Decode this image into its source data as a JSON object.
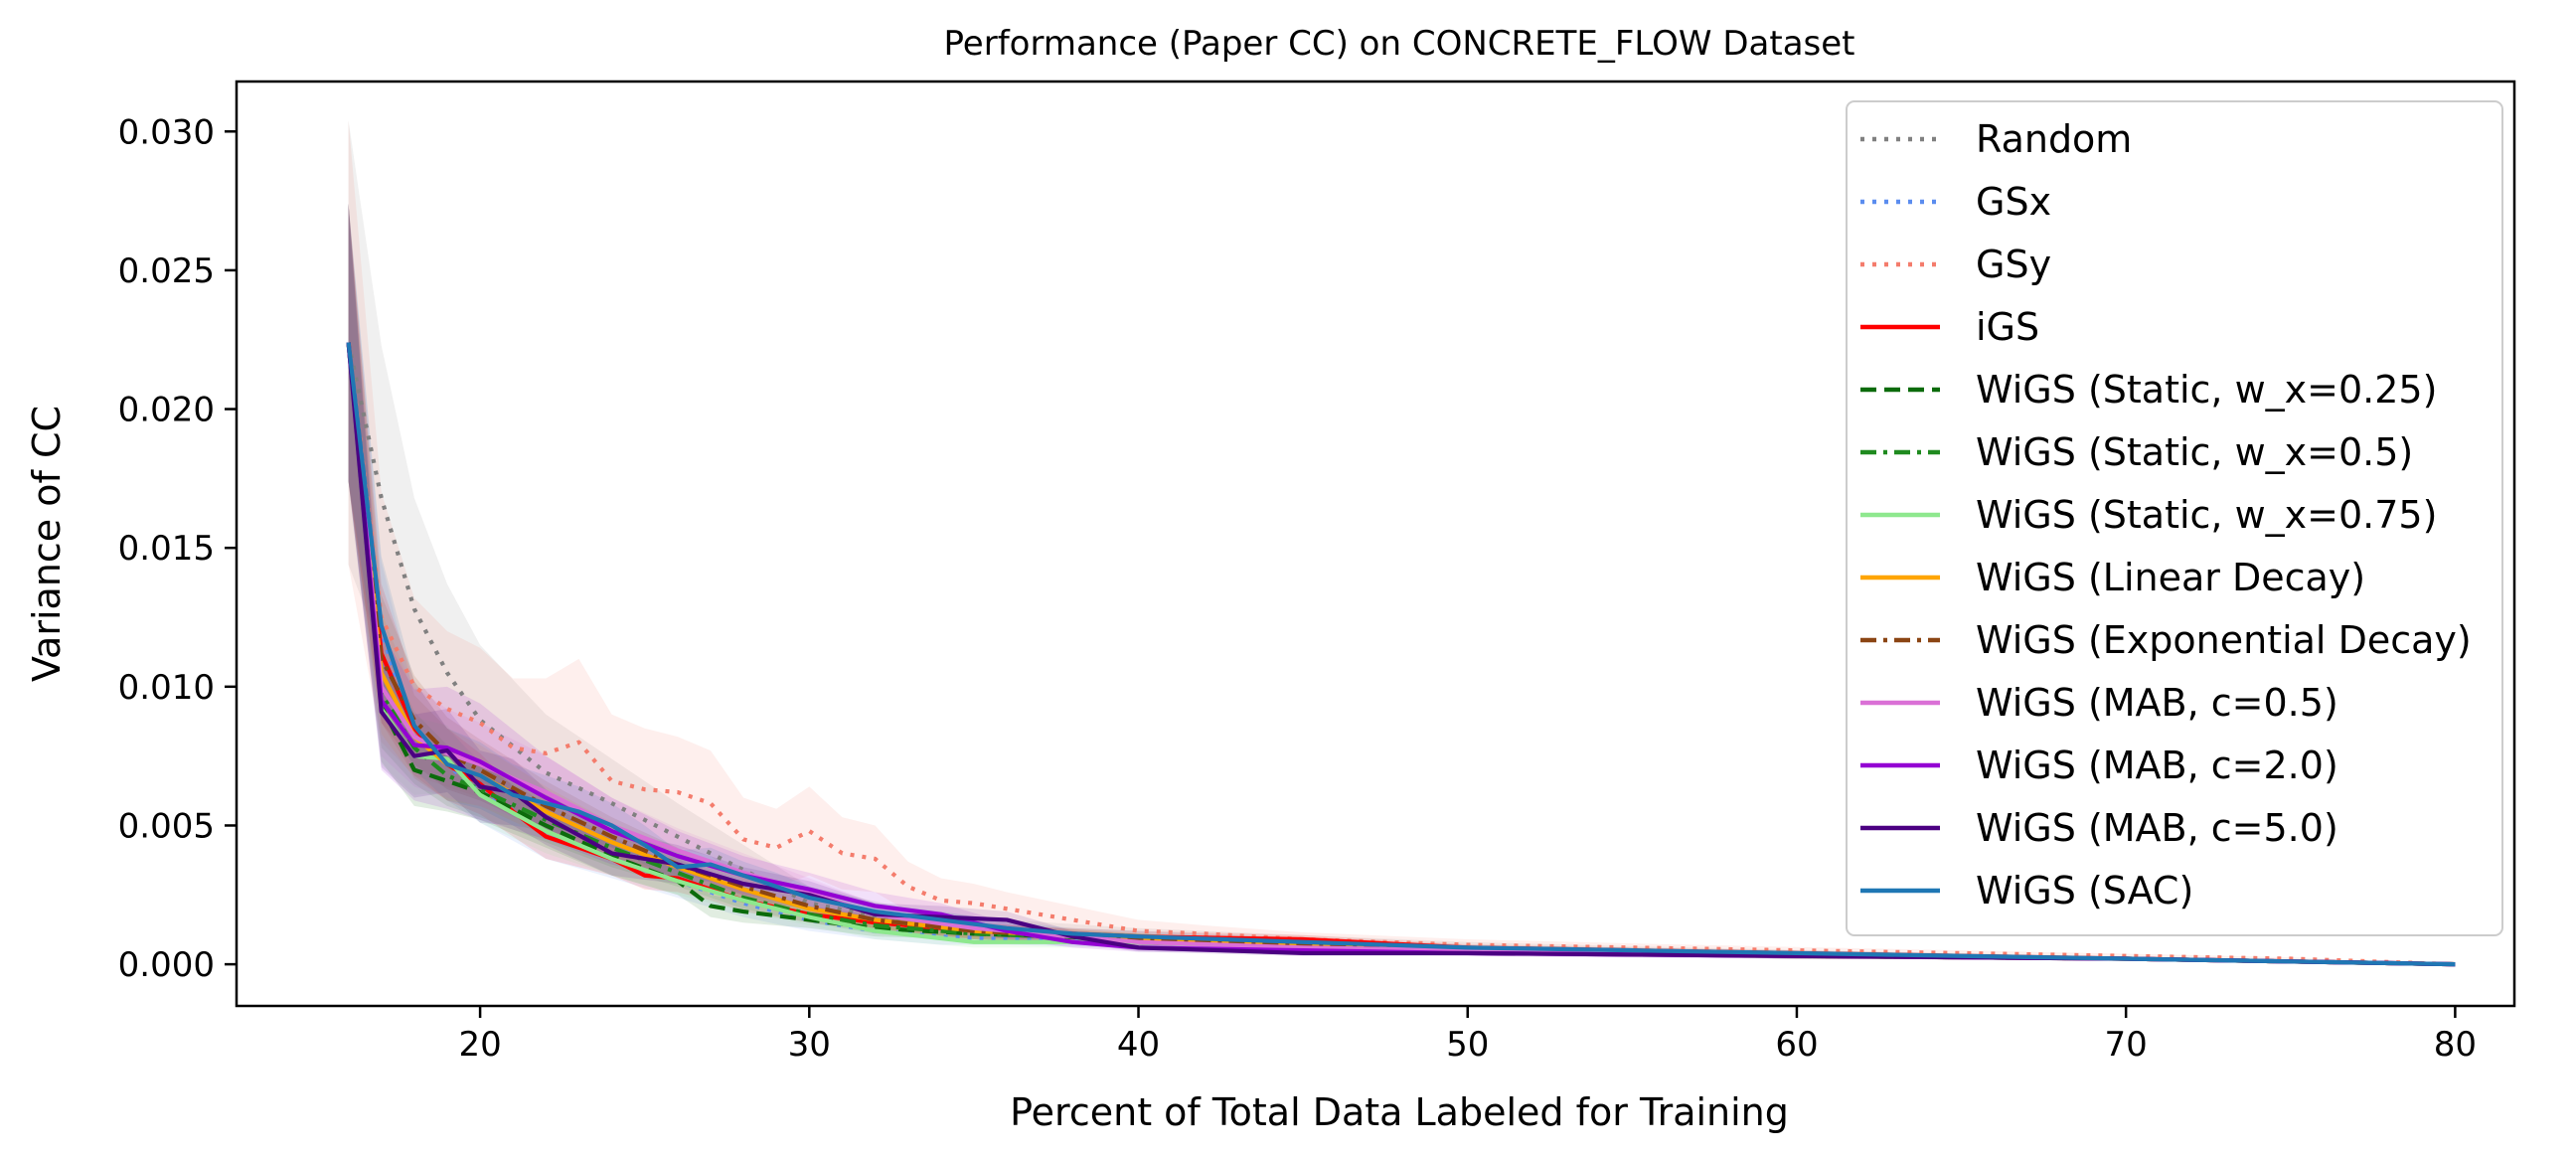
{
  "chart_data": {
    "type": "line",
    "title": "Performance (Paper CC) on CONCRETE_FLOW Dataset",
    "xlabel": "Percent of Total Data Labeled for Training",
    "ylabel": "Variance of CC",
    "xlim": [
      12.6,
      81.8
    ],
    "ylim": [
      -0.0015,
      0.0318
    ],
    "xticks": [
      20,
      30,
      40,
      50,
      60,
      70,
      80
    ],
    "yticks": [
      0.0,
      0.005,
      0.01,
      0.015,
      0.02,
      0.025,
      0.03
    ],
    "ytick_labels": [
      "0.000",
      "0.005",
      "0.010",
      "0.015",
      "0.020",
      "0.025",
      "0.030"
    ],
    "grid": false,
    "legend_position": "top-right",
    "series": [
      {
        "name": "Random",
        "color": "#808080",
        "style": "dotted",
        "x": [
          16,
          17,
          18,
          19,
          20,
          22,
          24,
          26,
          28,
          30,
          33,
          36,
          40,
          45,
          50,
          55,
          60,
          65,
          70,
          75,
          80
        ],
        "y": [
          0.0224,
          0.0168,
          0.0128,
          0.0105,
          0.0088,
          0.0069,
          0.0058,
          0.0046,
          0.0034,
          0.0022,
          0.0015,
          0.0012,
          0.001,
          0.0008,
          0.0006,
          0.0005,
          0.0004,
          0.0003,
          0.0002,
          0.0001,
          0.0
        ],
        "band": [
          0.008,
          0.0055,
          0.004,
          0.0032,
          0.0027,
          0.0021,
          0.0016,
          0.0012,
          0.0009,
          0.0006,
          0.0005,
          0.0004,
          0.0003,
          0.00025,
          0.0002,
          0.00015,
          0.00012,
          0.0001,
          8e-05,
          5e-05,
          0.0
        ]
      },
      {
        "name": "GSx",
        "color": "#5b8def",
        "style": "dotted",
        "x": [
          16,
          17,
          18,
          20,
          22,
          24,
          26,
          28,
          30,
          32,
          34,
          36,
          40,
          45,
          50,
          55,
          60,
          70,
          80
        ],
        "y": [
          0.0224,
          0.012,
          0.0082,
          0.0062,
          0.0047,
          0.0038,
          0.003,
          0.0022,
          0.0016,
          0.0012,
          0.001,
          0.0009,
          0.0008,
          0.0006,
          0.0005,
          0.0004,
          0.0003,
          0.0002,
          0.0
        ],
        "band": [
          0.005,
          0.0025,
          0.0015,
          0.0011,
          0.0009,
          0.0007,
          0.0006,
          0.0005,
          0.0004,
          0.0003,
          0.0003,
          0.0002,
          0.0002,
          0.00015,
          0.00012,
          0.0001,
          0.0001,
          5e-05,
          0.0
        ]
      },
      {
        "name": "GSy",
        "color": "#f47c6c",
        "style": "dotted",
        "x": [
          16,
          17,
          18,
          19,
          20,
          21,
          22,
          23,
          24,
          25,
          26,
          27,
          28,
          29,
          30,
          31,
          32,
          33,
          34,
          35,
          36,
          38,
          40,
          42,
          45,
          50,
          55,
          60,
          65,
          70,
          75,
          80
        ],
        "y": [
          0.0224,
          0.0125,
          0.01,
          0.0092,
          0.0087,
          0.0078,
          0.0076,
          0.008,
          0.0066,
          0.0063,
          0.0062,
          0.0058,
          0.0045,
          0.0042,
          0.0048,
          0.004,
          0.0038,
          0.0028,
          0.0023,
          0.0022,
          0.002,
          0.0016,
          0.0012,
          0.0011,
          0.0009,
          0.0007,
          0.0006,
          0.0005,
          0.0004,
          0.0003,
          0.0002,
          0.0
        ],
        "band": [
          0.008,
          0.0045,
          0.0032,
          0.0028,
          0.0027,
          0.0025,
          0.0027,
          0.003,
          0.0024,
          0.0022,
          0.002,
          0.0019,
          0.0015,
          0.0014,
          0.0016,
          0.0013,
          0.0012,
          0.0009,
          0.0008,
          0.0007,
          0.0006,
          0.0005,
          0.0004,
          0.0003,
          0.00025,
          0.0002,
          0.00015,
          0.00012,
          0.0001,
          8e-05,
          5e-05,
          0.0
        ]
      },
      {
        "name": "iGS",
        "color": "#ff0000",
        "style": "solid",
        "x": [
          16,
          17,
          18,
          19,
          20,
          21,
          22,
          23,
          24,
          25,
          26,
          27,
          28,
          30,
          32,
          35,
          38,
          40,
          45,
          50,
          55,
          60,
          65,
          70,
          75,
          80
        ],
        "y": [
          0.0224,
          0.0112,
          0.0085,
          0.0072,
          0.0065,
          0.0055,
          0.0046,
          0.0042,
          0.0038,
          0.0032,
          0.0031,
          0.0027,
          0.0023,
          0.0018,
          0.0015,
          0.0012,
          0.0011,
          0.001,
          0.0009,
          0.0006,
          0.0005,
          0.0004,
          0.0003,
          0.0002,
          0.0001,
          0.0
        ],
        "band": [
          0.005,
          0.0025,
          0.0017,
          0.0013,
          0.0011,
          0.0009,
          0.0008,
          0.0007,
          0.0006,
          0.0005,
          0.0005,
          0.0004,
          0.0004,
          0.0003,
          0.0003,
          0.00025,
          0.0002,
          0.0002,
          0.00015,
          0.00012,
          0.0001,
          0.0001,
          8e-05,
          5e-05,
          3e-05,
          0.0
        ]
      },
      {
        "name": "WiGS (Static, w_x=0.25)",
        "color": "#0b6b0b",
        "style": "dashed",
        "x": [
          16,
          17,
          18,
          19,
          20,
          22,
          24,
          26,
          27,
          28,
          30,
          32,
          35,
          40,
          45,
          50,
          60,
          70,
          80
        ],
        "y": [
          0.0224,
          0.0093,
          0.007,
          0.0066,
          0.0062,
          0.005,
          0.0039,
          0.003,
          0.0021,
          0.0019,
          0.0016,
          0.0013,
          0.0011,
          0.0009,
          0.0007,
          0.0005,
          0.0003,
          0.0002,
          0.0
        ],
        "band": [
          0.005,
          0.002,
          0.0013,
          0.0011,
          0.001,
          0.0008,
          0.0007,
          0.0005,
          0.0004,
          0.0004,
          0.0003,
          0.0003,
          0.0002,
          0.0002,
          0.00015,
          0.0001,
          0.0001,
          5e-05,
          0.0
        ]
      },
      {
        "name": "WiGS (Static, w_x=0.5)",
        "color": "#1f8a1f",
        "style": "dashdot",
        "x": [
          16,
          17,
          18,
          19,
          20,
          22,
          24,
          26,
          28,
          30,
          32,
          35,
          40,
          45,
          50,
          60,
          70,
          80
        ],
        "y": [
          0.0224,
          0.0098,
          0.0078,
          0.0068,
          0.0063,
          0.0052,
          0.0042,
          0.0033,
          0.0024,
          0.0018,
          0.0014,
          0.0011,
          0.0009,
          0.0007,
          0.0005,
          0.0003,
          0.0002,
          0.0
        ],
        "band": [
          0.005,
          0.002,
          0.0013,
          0.0011,
          0.001,
          0.0008,
          0.0007,
          0.0005,
          0.0004,
          0.0003,
          0.0003,
          0.0002,
          0.0002,
          0.00015,
          0.0001,
          0.0001,
          5e-05,
          0.0
        ]
      },
      {
        "name": "WiGS (Static, w_x=0.75)",
        "color": "#8ee88e",
        "style": "solid",
        "x": [
          16,
          17,
          18,
          19,
          20,
          22,
          24,
          26,
          28,
          30,
          32,
          35,
          40,
          45,
          50,
          60,
          70,
          80
        ],
        "y": [
          0.0224,
          0.0092,
          0.0075,
          0.0074,
          0.0061,
          0.0048,
          0.0038,
          0.003,
          0.0023,
          0.0017,
          0.0012,
          0.0008,
          0.0008,
          0.0006,
          0.0005,
          0.0003,
          0.0002,
          0.0
        ],
        "band": [
          0.005,
          0.002,
          0.0014,
          0.0012,
          0.001,
          0.0008,
          0.0006,
          0.0005,
          0.0004,
          0.0003,
          0.0003,
          0.0002,
          0.0002,
          0.00015,
          0.0001,
          0.0001,
          5e-05,
          0.0
        ]
      },
      {
        "name": "WiGS (Linear Decay)",
        "color": "#ffa500",
        "style": "solid",
        "x": [
          16,
          17,
          18,
          19,
          20,
          22,
          24,
          26,
          28,
          30,
          32,
          35,
          40,
          45,
          50,
          60,
          70,
          80
        ],
        "y": [
          0.0224,
          0.0105,
          0.0082,
          0.0072,
          0.0068,
          0.0055,
          0.0044,
          0.0035,
          0.0027,
          0.002,
          0.0016,
          0.0012,
          0.0009,
          0.0007,
          0.0005,
          0.0003,
          0.0002,
          0.0
        ],
        "band": [
          0.005,
          0.0022,
          0.0015,
          0.0013,
          0.0011,
          0.0009,
          0.0007,
          0.0006,
          0.0005,
          0.0004,
          0.0003,
          0.0003,
          0.0002,
          0.00015,
          0.0001,
          0.0001,
          5e-05,
          0.0
        ]
      },
      {
        "name": "WiGS (Exponential Decay)",
        "color": "#8b4513",
        "style": "dashdot",
        "x": [
          16,
          17,
          18,
          19,
          20,
          22,
          24,
          26,
          28,
          30,
          32,
          35,
          40,
          45,
          50,
          60,
          70,
          80
        ],
        "y": [
          0.0224,
          0.011,
          0.0088,
          0.0076,
          0.007,
          0.0057,
          0.0046,
          0.0036,
          0.0028,
          0.0021,
          0.0016,
          0.0012,
          0.0009,
          0.0007,
          0.0005,
          0.0003,
          0.0002,
          0.0
        ],
        "band": [
          0.005,
          0.0023,
          0.0016,
          0.0013,
          0.0011,
          0.0009,
          0.0007,
          0.0006,
          0.0005,
          0.0004,
          0.0003,
          0.0003,
          0.0002,
          0.00015,
          0.0001,
          0.0001,
          5e-05,
          0.0
        ]
      },
      {
        "name": "WiGS (MAB, c=0.5)",
        "color": "#da70d6",
        "style": "solid",
        "x": [
          16,
          17,
          18,
          19,
          20,
          22,
          24,
          26,
          28,
          30,
          32,
          35,
          40,
          45,
          50,
          60,
          70,
          80
        ],
        "y": [
          0.0224,
          0.01,
          0.0082,
          0.0076,
          0.0072,
          0.0062,
          0.005,
          0.0041,
          0.0033,
          0.0026,
          0.0018,
          0.0013,
          0.0008,
          0.0006,
          0.0005,
          0.0003,
          0.0002,
          0.0
        ],
        "band": [
          0.005,
          0.0025,
          0.0018,
          0.0016,
          0.0015,
          0.0013,
          0.001,
          0.0008,
          0.0007,
          0.0005,
          0.0004,
          0.0003,
          0.0002,
          0.00015,
          0.0001,
          0.0001,
          5e-05,
          0.0
        ]
      },
      {
        "name": "WiGS (MAB, c=2.0)",
        "color": "#9400d3",
        "style": "solid",
        "x": [
          16,
          17,
          18,
          19,
          20,
          22,
          24,
          26,
          28,
          30,
          32,
          34,
          36,
          38,
          40,
          45,
          50,
          60,
          70,
          80
        ],
        "y": [
          0.0224,
          0.0095,
          0.0079,
          0.0078,
          0.0073,
          0.006,
          0.0048,
          0.0039,
          0.0032,
          0.0027,
          0.0021,
          0.0018,
          0.0012,
          0.0008,
          0.0006,
          0.0005,
          0.0004,
          0.0003,
          0.0002,
          0.0
        ],
        "band": [
          0.005,
          0.0025,
          0.002,
          0.0022,
          0.0021,
          0.0015,
          0.0012,
          0.0009,
          0.0007,
          0.0006,
          0.0005,
          0.0004,
          0.0003,
          0.0002,
          0.00015,
          0.0001,
          0.0001,
          0.0001,
          5e-05,
          0.0
        ]
      },
      {
        "name": "WiGS (MAB, c=5.0)",
        "color": "#4b0082",
        "style": "solid",
        "x": [
          16,
          17,
          18,
          19,
          20,
          21,
          22,
          24,
          26,
          28,
          30,
          32,
          34,
          36,
          38,
          40,
          45,
          50,
          60,
          70,
          80
        ],
        "y": [
          0.0224,
          0.0091,
          0.0075,
          0.0077,
          0.0064,
          0.0062,
          0.0053,
          0.004,
          0.0036,
          0.0029,
          0.0025,
          0.0018,
          0.0017,
          0.0016,
          0.001,
          0.0006,
          0.0004,
          0.0004,
          0.0003,
          0.0002,
          0.0
        ],
        "band": [
          0.005,
          0.002,
          0.0015,
          0.0015,
          0.0013,
          0.0012,
          0.001,
          0.0008,
          0.0007,
          0.0006,
          0.0005,
          0.0004,
          0.0004,
          0.0003,
          0.0002,
          0.00015,
          0.0001,
          0.0001,
          0.0001,
          5e-05,
          0.0
        ]
      },
      {
        "name": "WiGS (SAC)",
        "color": "#1f77b4",
        "style": "solid",
        "x": [
          16,
          17,
          18,
          19,
          20,
          21,
          22,
          23,
          24,
          25,
          26,
          27,
          28,
          29,
          30,
          32,
          34,
          36,
          38,
          40,
          45,
          50,
          55,
          60,
          65,
          70,
          75,
          80
        ],
        "y": [
          0.0224,
          0.0122,
          0.0086,
          0.0072,
          0.0068,
          0.0061,
          0.0058,
          0.0055,
          0.005,
          0.0043,
          0.0035,
          0.0036,
          0.0032,
          0.0028,
          0.0024,
          0.0019,
          0.0016,
          0.0013,
          0.0011,
          0.001,
          0.0008,
          0.0006,
          0.0005,
          0.0004,
          0.0003,
          0.0002,
          0.0001,
          0.0
        ],
        "band": [
          0.005,
          0.0025,
          0.0016,
          0.0013,
          0.0012,
          0.0011,
          0.001,
          0.0009,
          0.0008,
          0.0007,
          0.0006,
          0.0006,
          0.0005,
          0.0005,
          0.0004,
          0.0003,
          0.0003,
          0.00025,
          0.0002,
          0.0002,
          0.00015,
          0.0001,
          0.0001,
          0.0001,
          8e-05,
          5e-05,
          3e-05,
          0.0
        ]
      }
    ]
  }
}
